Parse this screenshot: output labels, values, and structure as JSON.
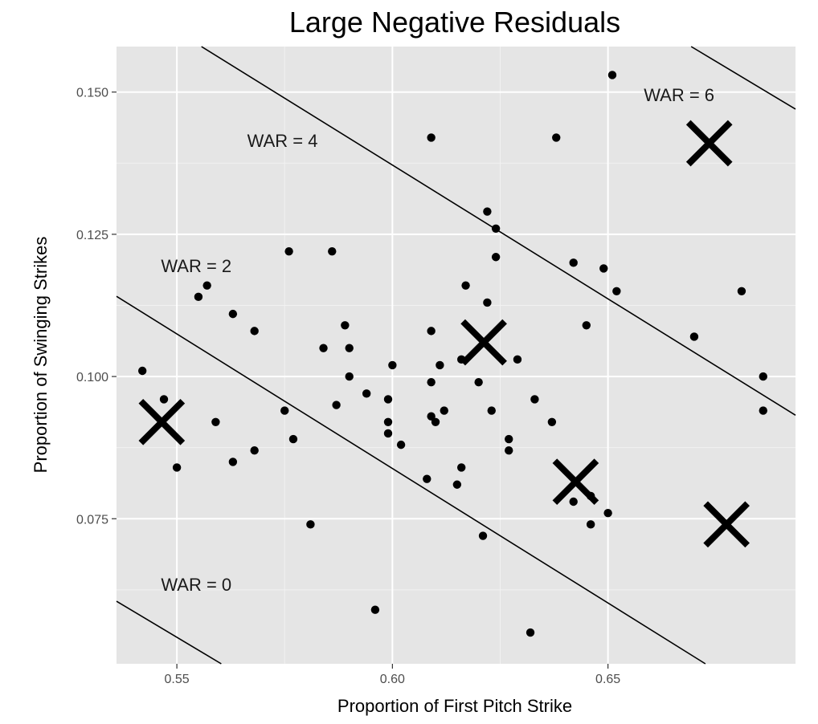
{
  "chart_data": {
    "type": "scatter",
    "title": "Large Negative Residuals",
    "xlabel": "Proportion of First Pitch Strike",
    "ylabel": "Proportion of Swinging Strikes",
    "xlim": [
      0.536,
      0.6935
    ],
    "ylim": [
      0.0495,
      0.158
    ],
    "x_ticks": [
      0.55,
      0.6,
      0.65
    ],
    "x_tick_labels": [
      "0.55",
      "0.60",
      "0.65"
    ],
    "y_ticks": [
      0.075,
      0.1,
      0.125,
      0.15
    ],
    "y_tick_labels": [
      "0.075",
      "0.100",
      "0.125",
      "0.150"
    ],
    "grid": true,
    "background": "#e5e5e5",
    "points": [
      {
        "x": 0.542,
        "y": 0.101
      },
      {
        "x": 0.547,
        "y": 0.096
      },
      {
        "x": 0.55,
        "y": 0.084
      },
      {
        "x": 0.555,
        "y": 0.114
      },
      {
        "x": 0.557,
        "y": 0.116
      },
      {
        "x": 0.559,
        "y": 0.092
      },
      {
        "x": 0.563,
        "y": 0.111
      },
      {
        "x": 0.563,
        "y": 0.085
      },
      {
        "x": 0.568,
        "y": 0.108
      },
      {
        "x": 0.568,
        "y": 0.087
      },
      {
        "x": 0.575,
        "y": 0.094
      },
      {
        "x": 0.576,
        "y": 0.122
      },
      {
        "x": 0.577,
        "y": 0.089
      },
      {
        "x": 0.581,
        "y": 0.074
      },
      {
        "x": 0.584,
        "y": 0.105
      },
      {
        "x": 0.586,
        "y": 0.122
      },
      {
        "x": 0.587,
        "y": 0.095
      },
      {
        "x": 0.589,
        "y": 0.109
      },
      {
        "x": 0.59,
        "y": 0.105
      },
      {
        "x": 0.59,
        "y": 0.1
      },
      {
        "x": 0.594,
        "y": 0.097
      },
      {
        "x": 0.596,
        "y": 0.059
      },
      {
        "x": 0.599,
        "y": 0.096
      },
      {
        "x": 0.599,
        "y": 0.092
      },
      {
        "x": 0.599,
        "y": 0.09
      },
      {
        "x": 0.6,
        "y": 0.102
      },
      {
        "x": 0.602,
        "y": 0.088
      },
      {
        "x": 0.608,
        "y": 0.082
      },
      {
        "x": 0.609,
        "y": 0.142
      },
      {
        "x": 0.609,
        "y": 0.108
      },
      {
        "x": 0.609,
        "y": 0.099
      },
      {
        "x": 0.609,
        "y": 0.093
      },
      {
        "x": 0.61,
        "y": 0.092
      },
      {
        "x": 0.611,
        "y": 0.102
      },
      {
        "x": 0.612,
        "y": 0.094
      },
      {
        "x": 0.615,
        "y": 0.081
      },
      {
        "x": 0.616,
        "y": 0.084
      },
      {
        "x": 0.616,
        "y": 0.103
      },
      {
        "x": 0.617,
        "y": 0.116
      },
      {
        "x": 0.62,
        "y": 0.099
      },
      {
        "x": 0.621,
        "y": 0.072
      },
      {
        "x": 0.622,
        "y": 0.129
      },
      {
        "x": 0.622,
        "y": 0.113
      },
      {
        "x": 0.623,
        "y": 0.094
      },
      {
        "x": 0.624,
        "y": 0.126
      },
      {
        "x": 0.624,
        "y": 0.121
      },
      {
        "x": 0.627,
        "y": 0.089
      },
      {
        "x": 0.627,
        "y": 0.087
      },
      {
        "x": 0.629,
        "y": 0.103
      },
      {
        "x": 0.632,
        "y": 0.055
      },
      {
        "x": 0.633,
        "y": 0.096
      },
      {
        "x": 0.637,
        "y": 0.092
      },
      {
        "x": 0.638,
        "y": 0.142
      },
      {
        "x": 0.642,
        "y": 0.12
      },
      {
        "x": 0.642,
        "y": 0.078
      },
      {
        "x": 0.645,
        "y": 0.109
      },
      {
        "x": 0.646,
        "y": 0.079
      },
      {
        "x": 0.646,
        "y": 0.074
      },
      {
        "x": 0.649,
        "y": 0.119
      },
      {
        "x": 0.65,
        "y": 0.076
      },
      {
        "x": 0.651,
        "y": 0.153
      },
      {
        "x": 0.652,
        "y": 0.115
      },
      {
        "x": 0.67,
        "y": 0.107
      },
      {
        "x": 0.681,
        "y": 0.115
      },
      {
        "x": 0.686,
        "y": 0.1
      },
      {
        "x": 0.686,
        "y": 0.094
      }
    ],
    "highlighted": [
      {
        "x": 0.5465,
        "y": 0.092
      },
      {
        "x": 0.6212,
        "y": 0.106
      },
      {
        "x": 0.6425,
        "y": 0.0815
      },
      {
        "x": 0.6735,
        "y": 0.141
      },
      {
        "x": 0.6775,
        "y": 0.074
      }
    ],
    "reference_lines": [
      {
        "x1": 0.536,
        "y1": 0.0605,
        "x2": 0.5603,
        "y2": 0.0495
      },
      {
        "x1": 0.536,
        "y1": 0.1141,
        "x2": 0.6726,
        "y2": 0.0495
      },
      {
        "x1": 0.5557,
        "y1": 0.158,
        "x2": 0.6935,
        "y2": 0.0932
      },
      {
        "x1": 0.6693,
        "y1": 0.158,
        "x2": 0.6935,
        "y2": 0.147
      }
    ],
    "annotations": [
      {
        "text": "WAR = 0",
        "x": 0.5545,
        "y": 0.0635
      },
      {
        "text": "WAR = 2",
        "x": 0.5545,
        "y": 0.1195
      },
      {
        "text": "WAR = 4",
        "x": 0.5745,
        "y": 0.1415
      },
      {
        "text": "WAR = 6",
        "x": 0.6665,
        "y": 0.1495
      }
    ]
  }
}
